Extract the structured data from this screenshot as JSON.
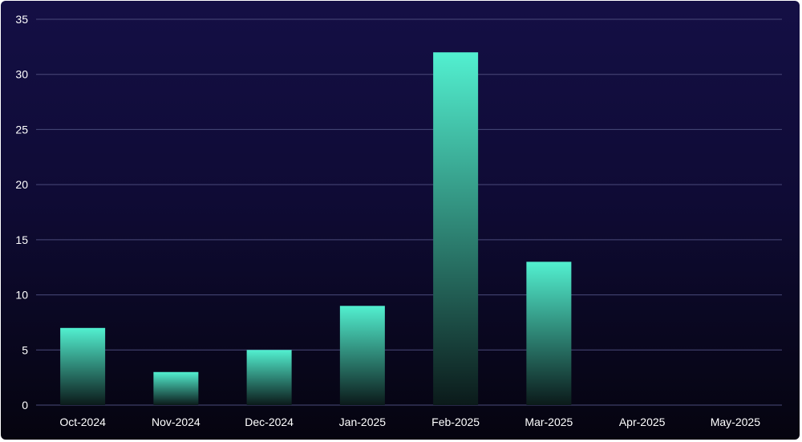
{
  "chart_data": {
    "type": "bar",
    "title": "",
    "xlabel": "",
    "ylabel": "",
    "categories": [
      "Oct-2024",
      "Nov-2024",
      "Dec-2024",
      "Jan-2025",
      "Feb-2025",
      "Mar-2025",
      "Apr-2025",
      "May-2025"
    ],
    "values": [
      7,
      3,
      5,
      9,
      32,
      13,
      0,
      0
    ],
    "ylim": [
      0,
      35
    ],
    "yticks": [
      0,
      5,
      10,
      15,
      20,
      25,
      30,
      35
    ],
    "grid": true,
    "legend": "none",
    "colors": {
      "bar_top": "#52f0d0",
      "bar_bottom": "#0b1a1a",
      "background_top": "#140f45",
      "background_bottom": "#05040f",
      "gridline": "#4a4a7a",
      "text": "#ffffff"
    }
  }
}
